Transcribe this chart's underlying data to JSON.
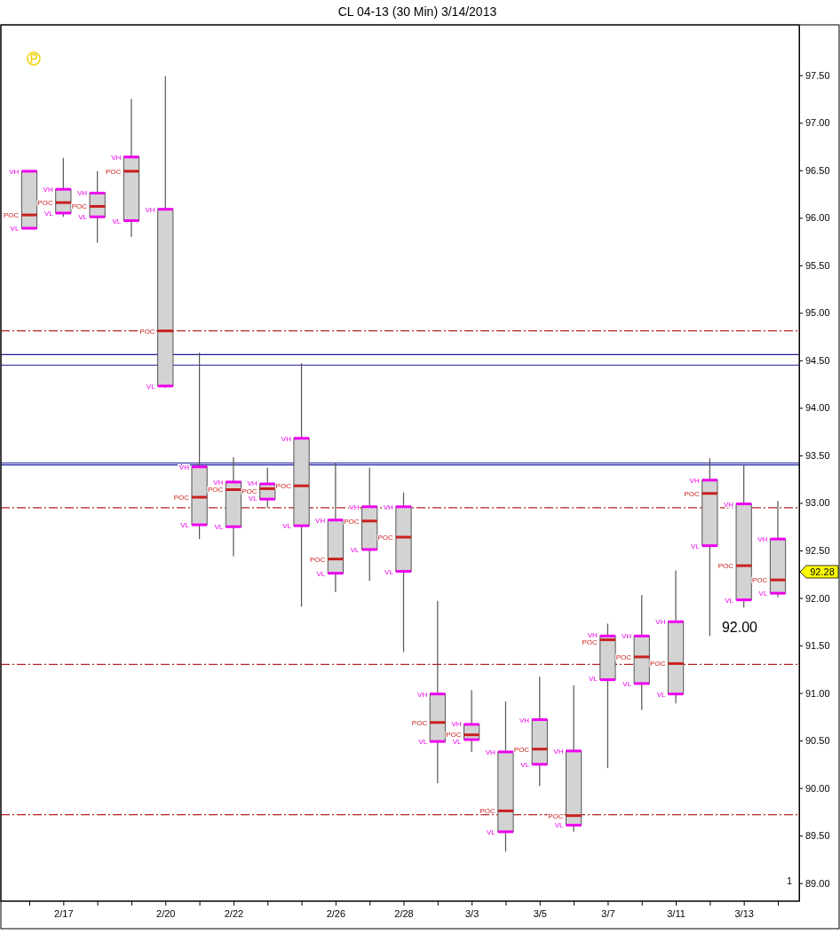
{
  "chart_data": {
    "type": "box",
    "title": "CL 04-13 (30 Min)  3/14/2013",
    "categories": [
      null,
      "2/17",
      null,
      null,
      "2/20",
      null,
      "2/22",
      null,
      null,
      "2/26",
      null,
      "2/28",
      null,
      "3/3",
      null,
      "3/5",
      null,
      "3/7",
      null,
      "3/11",
      null,
      "3/13",
      null
    ],
    "color": "#d3d3d3",
    "boxes": [
      {
        "low": 95.89,
        "q1": 95.89,
        "median": 96.03,
        "q3": 96.49,
        "high": 96.49
      },
      {
        "low": 96.01,
        "q1": 96.05,
        "median": 96.16,
        "q3": 96.3,
        "high": 96.63
      },
      {
        "low": 95.74,
        "q1": 96.01,
        "median": 96.12,
        "q3": 96.26,
        "high": 96.49
      },
      {
        "low": 95.8,
        "q1": 95.97,
        "median": 96.49,
        "q3": 96.64,
        "high": 97.25
      },
      {
        "low": 94.21,
        "q1": 94.23,
        "median": 94.81,
        "q3": 96.09,
        "high": 97.49
      },
      {
        "low": 92.62,
        "q1": 92.77,
        "median": 93.06,
        "q3": 93.38,
        "high": 94.58
      },
      {
        "low": 92.44,
        "q1": 92.75,
        "median": 93.14,
        "q3": 93.22,
        "high": 93.48
      },
      {
        "low": 92.95,
        "q1": 93.04,
        "median": 93.15,
        "q3": 93.2,
        "high": 93.37
      },
      {
        "low": 91.91,
        "q1": 92.76,
        "median": 93.18,
        "q3": 93.68,
        "high": 94.47
      },
      {
        "low": 92.06,
        "q1": 92.26,
        "median": 92.41,
        "q3": 92.82,
        "high": 93.42
      },
      {
        "low": 92.18,
        "q1": 92.51,
        "median": 92.81,
        "q3": 92.96,
        "high": 93.37
      },
      {
        "low": 91.43,
        "q1": 92.28,
        "median": 92.64,
        "q3": 92.96,
        "high": 93.11
      },
      {
        "low": 90.05,
        "q1": 90.49,
        "median": 90.69,
        "q3": 90.99,
        "high": 91.97
      },
      {
        "low": 90.38,
        "q1": 90.51,
        "median": 90.56,
        "q3": 90.67,
        "high": 91.03
      },
      {
        "low": 89.33,
        "q1": 89.54,
        "median": 89.76,
        "q3": 90.38,
        "high": 90.91
      },
      {
        "low": 90.02,
        "q1": 90.25,
        "median": 90.41,
        "q3": 90.72,
        "high": 91.17
      },
      {
        "low": 89.54,
        "q1": 89.61,
        "median": 89.71,
        "q3": 90.39,
        "high": 91.08
      },
      {
        "low": 90.21,
        "q1": 91.14,
        "median": 91.56,
        "q3": 91.6,
        "high": 91.73
      },
      {
        "low": 90.82,
        "q1": 91.1,
        "median": 91.38,
        "q3": 91.6,
        "high": 92.03
      },
      {
        "low": 90.89,
        "q1": 90.99,
        "median": 91.31,
        "q3": 91.75,
        "high": 92.29
      },
      {
        "low": 91.6,
        "q1": 92.55,
        "median": 93.1,
        "q3": 93.24,
        "high": 93.47
      },
      {
        "low": 91.9,
        "q1": 91.98,
        "median": 92.34,
        "q3": 92.99,
        "high": 93.4
      },
      {
        "low": 92.01,
        "q1": 92.05,
        "median": 92.19,
        "q3": 92.62,
        "high": 93.02
      }
    ],
    "ylim": [
      88.81,
      98.03
    ],
    "yticks": [
      {
        "value": 89,
        "label": "89.00"
      },
      {
        "value": 89.5,
        "label": "89.50"
      },
      {
        "value": 90,
        "label": "90.00"
      },
      {
        "value": 90.5,
        "label": "90.50"
      },
      {
        "value": 91,
        "label": "91.00"
      },
      {
        "value": 91.5,
        "label": "91.50"
      },
      {
        "value": 92,
        "label": "92.00"
      },
      {
        "value": 92.5,
        "label": "92.50"
      },
      {
        "value": 93,
        "label": "93.00"
      },
      {
        "value": 93.5,
        "label": "93.50"
      },
      {
        "value": 94,
        "label": "94.00"
      },
      {
        "value": 94.5,
        "label": "94.50"
      },
      {
        "value": 95,
        "label": "95.00"
      },
      {
        "value": 95.5,
        "label": "95.50"
      },
      {
        "value": 96,
        "label": "96.00"
      },
      {
        "value": 96.5,
        "label": "96.50"
      },
      {
        "value": 97,
        "label": "97.00"
      },
      {
        "value": 97.5,
        "label": "97.50"
      }
    ],
    "ref_lines": [
      {
        "axis": "y",
        "value": 94.81,
        "color": "#b22222",
        "line_style": "dashed"
      },
      {
        "axis": "y",
        "value": 92.95,
        "color": "#b22222",
        "line_style": "dashed"
      },
      {
        "axis": "y",
        "value": 91.3,
        "color": "#b22222",
        "line_style": "dashed"
      },
      {
        "axis": "y",
        "value": 89.72,
        "color": "#b22222",
        "line_style": "dashed"
      },
      {
        "axis": "y",
        "value": 94.56,
        "color": "#1c1c9c",
        "line_style": "solid"
      },
      {
        "axis": "y",
        "value": 94.45,
        "color": "#1c1c9c",
        "line_style": "solid"
      },
      {
        "axis": "y",
        "value": 93.42,
        "color": "#1c1c9c",
        "line_style": "solid"
      },
      {
        "axis": "y",
        "value": 93.4,
        "color": "#1c1c9c",
        "line_style": "solid"
      }
    ],
    "annotations": [
      "92.28",
      "92.00",
      "1",
      "VH",
      "POC",
      "VL",
      "VH",
      "POC",
      "VL",
      "VH",
      "POC",
      "VL",
      "VH",
      "POC",
      "VL",
      "VH",
      "POC",
      "VL",
      "VH",
      "POC",
      "VL",
      "VH",
      "POC",
      "VL",
      "VH",
      "POC",
      "VL",
      "VH",
      "POC",
      "VL",
      "VH",
      "POC",
      "VL",
      "VH",
      "POC",
      "VL",
      "VH",
      "POC",
      "VL",
      "VH",
      "POC",
      "VL",
      "VH",
      "POC",
      "VL",
      "VH",
      "POC",
      "VL",
      "VH",
      "POC",
      "VL",
      "VH",
      "POC",
      "VL",
      "VH",
      "POC",
      "VL",
      "VH",
      "POC",
      "VL",
      "VH",
      "POC",
      "VL",
      "VH",
      "POC",
      "VL",
      "VH",
      "POC",
      "VL",
      "VH",
      "POC",
      "VL"
    ]
  }
}
